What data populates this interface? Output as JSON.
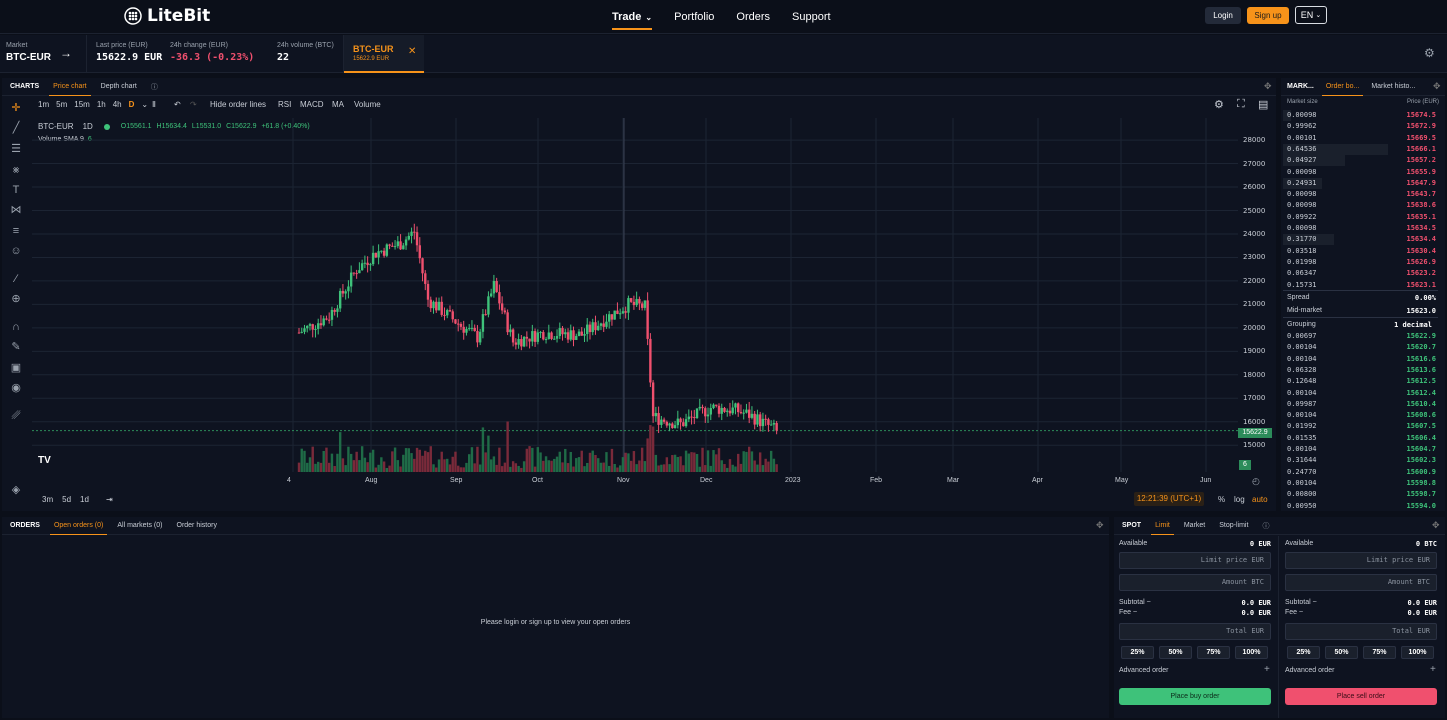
{
  "brand": {
    "logo_text": "LiteBit",
    "accent": "#f7931a",
    "buy_color": "#3ec27a",
    "sell_color": "#f0506e"
  },
  "nav": {
    "items": [
      "Trade",
      "Portfolio",
      "Orders",
      "Support"
    ],
    "active": "Trade"
  },
  "auth": {
    "login": "Login",
    "signup": "Sign up",
    "lang": "EN"
  },
  "ticker": {
    "market_label": "Market",
    "market_value": "BTC-EUR",
    "last_price_label": "Last price (EUR)",
    "last_price_value": "15622.9  EUR",
    "change_label": "24h change (EUR)",
    "change_value": "-36.3  (-0.23%)",
    "volume_label": "24h volume (BTC)",
    "volume_value": "22",
    "tab_pair": "BTC-EUR",
    "tab_price": "15622.9 EUR"
  },
  "charts": {
    "title": "CHARTS",
    "tabs": [
      "Price chart",
      "Depth chart"
    ],
    "intervals": [
      "1m",
      "5m",
      "15m",
      "1h",
      "4h",
      "D"
    ],
    "toolbar": [
      "Hide order lines",
      "RSI",
      "MACD",
      "MA",
      "Volume"
    ],
    "legend_symbol": "BTC-EUR",
    "legend_tf": "1D",
    "legend_o": "O15561.1",
    "legend_h": "H15634.4",
    "legend_l": "L15531.0",
    "legend_c": "C15622.9",
    "legend_chg": "+61.8 (+0.40%)",
    "volume_label": "Volume SMA 9",
    "volume_value": "6",
    "price_tag": "15622.9",
    "vol_tag": "6",
    "ranges": [
      "3m",
      "5d",
      "1d"
    ],
    "time": "12:21:39 (UTC+1)",
    "pct": "%",
    "log": "log",
    "auto": "auto"
  },
  "chart_data": {
    "type": "candlestick",
    "title": "",
    "xlabel": "",
    "ylabel": "",
    "x_ticks": [
      "4",
      "Aug",
      "Sep",
      "Oct",
      "Nov",
      "Dec",
      "2023",
      "Feb",
      "Mar",
      "Apr",
      "May",
      "Jun"
    ],
    "y_ticks": [
      15000,
      16000,
      17000,
      18000,
      19000,
      20000,
      21000,
      22000,
      23000,
      24000,
      25000,
      26000,
      27000,
      28000
    ],
    "ylim": [
      14200,
      28600
    ],
    "series_close_approx": [
      {
        "x": "Jul-04",
        "close": 19800
      },
      {
        "x": "Jul-15",
        "close": 20500
      },
      {
        "x": "Jul-25",
        "close": 22500
      },
      {
        "x": "Aug-01",
        "close": 23200
      },
      {
        "x": "Aug-10",
        "close": 23600
      },
      {
        "x": "Aug-15",
        "close": 24100
      },
      {
        "x": "Aug-20",
        "close": 21200
      },
      {
        "x": "Sep-01",
        "close": 20100
      },
      {
        "x": "Sep-07",
        "close": 19600
      },
      {
        "x": "Sep-13",
        "close": 21800
      },
      {
        "x": "Sep-20",
        "close": 19400
      },
      {
        "x": "Oct-01",
        "close": 19800
      },
      {
        "x": "Oct-15",
        "close": 19700
      },
      {
        "x": "Oct-25",
        "close": 20500
      },
      {
        "x": "Nov-01",
        "close": 21000
      },
      {
        "x": "Nov-07",
        "close": 20900
      },
      {
        "x": "Nov-10",
        "close": 16200
      },
      {
        "x": "Nov-20",
        "close": 15900
      },
      {
        "x": "Dec-01",
        "close": 16600
      },
      {
        "x": "Dec-10",
        "close": 16500
      },
      {
        "x": "Dec-15",
        "close": 16300
      },
      {
        "x": "Dec-25",
        "close": 15622.9
      }
    ]
  },
  "orderbook": {
    "tabs": [
      "MARK...",
      "Order bo...",
      "Market histo..."
    ],
    "col_size": "Market size",
    "col_price": "Price (EUR)",
    "asks": [
      [
        "0.00098",
        "15674.5",
        0.05
      ],
      [
        "0.99962",
        "15672.9",
        0.0
      ],
      [
        "0.00101",
        "15669.5",
        0.0
      ],
      [
        "0.64536",
        "15666.1",
        0.68
      ],
      [
        "0.04927",
        "15657.2",
        0.4
      ],
      [
        "0.00098",
        "15655.9",
        0.0
      ],
      [
        "0.24931",
        "15647.9",
        0.25
      ],
      [
        "0.00098",
        "15643.7",
        0.0
      ],
      [
        "0.00098",
        "15638.6",
        0.0
      ],
      [
        "0.09922",
        "15635.1",
        0.0
      ],
      [
        "0.00098",
        "15634.5",
        0.0
      ],
      [
        "0.31770",
        "15634.4",
        0.33
      ],
      [
        "0.03518",
        "15630.4",
        0.0
      ],
      [
        "0.01998",
        "15626.9",
        0.0
      ],
      [
        "0.06347",
        "15623.2",
        0.0
      ],
      [
        "0.15731",
        "15623.1",
        0.0
      ]
    ],
    "spread_label": "Spread",
    "spread_value": "0.00%",
    "mid_label": "Mid-market",
    "mid_value": "15623.0",
    "grouping_label": "Grouping",
    "grouping_value": "1 decimal",
    "bids": [
      [
        "0.00697",
        "15622.9"
      ],
      [
        "0.00104",
        "15620.7"
      ],
      [
        "0.00104",
        "15616.6"
      ],
      [
        "0.06328",
        "15613.6"
      ],
      [
        "0.12648",
        "15612.5"
      ],
      [
        "0.00104",
        "15612.4"
      ],
      [
        "0.09987",
        "15610.4"
      ],
      [
        "0.00104",
        "15608.6"
      ],
      [
        "0.01992",
        "15607.5"
      ],
      [
        "0.01535",
        "15606.4"
      ],
      [
        "0.00104",
        "15604.7"
      ],
      [
        "0.31644",
        "15602.3"
      ],
      [
        "0.24770",
        "15600.9"
      ],
      [
        "0.00104",
        "15598.8"
      ],
      [
        "0.00800",
        "15598.7"
      ],
      [
        "0.00950",
        "15594.0"
      ]
    ]
  },
  "orders": {
    "title": "ORDERS",
    "tabs": [
      "Open orders (0)",
      "All markets (0)",
      "Order history"
    ],
    "empty": "Please login or sign up to view your open orders"
  },
  "spot": {
    "title": "SPOT",
    "tabs": [
      "Limit",
      "Market",
      "Stop-limit"
    ],
    "available": "Available",
    "buy_available": "0 EUR",
    "sell_available": "0 BTC",
    "limit_ph": "Limit price EUR",
    "amount_ph": "Amount BTC",
    "total_ph": "Total EUR",
    "subtotal": "Subtotal ~",
    "fee": "Fee ~",
    "zero_eur": "0.0 EUR",
    "pcts": [
      "25%",
      "50%",
      "75%",
      "100%"
    ],
    "advanced": "Advanced order",
    "buy_btn": "Place buy order",
    "sell_btn": "Place sell order"
  }
}
